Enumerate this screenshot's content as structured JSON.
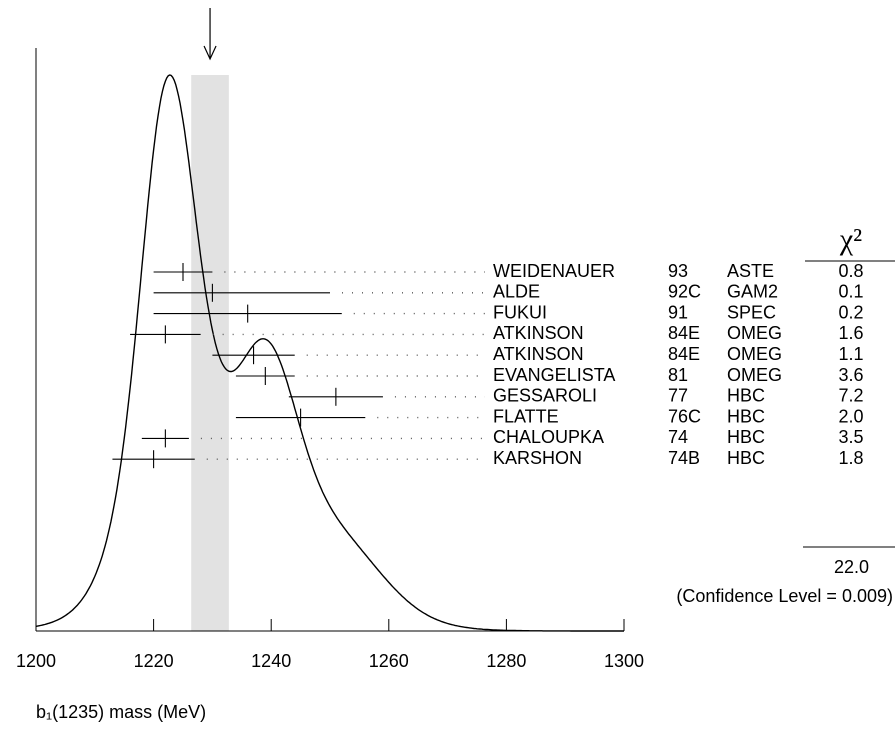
{
  "chart_data": {
    "type": "ideogram",
    "x_label": "b₁(1235) mass (MeV)",
    "xlim": [
      1200,
      1300
    ],
    "xticks": [
      1200,
      1220,
      1240,
      1260,
      1280,
      1300
    ],
    "average": {
      "value": 1229.6,
      "error": 3.2
    },
    "authors": [
      "WEIDENAUER",
      "ALDE",
      "FUKUI",
      "ATKINSON",
      "ATKINSON",
      "EVANGELISTA",
      "GESSAROLI",
      "FLATTE",
      "CHALOUPKA",
      "KARSHON"
    ],
    "years": [
      "93",
      "92C",
      "91",
      "84E",
      "84E",
      "81",
      "77",
      "76C",
      "74",
      "74B"
    ],
    "techniques": [
      "ASTE",
      "GAM2",
      "SPEC",
      "OMEG",
      "OMEG",
      "OMEG",
      "HBC",
      "HBC",
      "HBC",
      "HBC"
    ],
    "values": [
      1225,
      1230,
      1236,
      1222,
      1237,
      1239,
      1251,
      1245,
      1222,
      1220
    ],
    "lower": [
      1220,
      1220,
      1220,
      1216,
      1230,
      1234,
      1243,
      1234,
      1218,
      1213
    ],
    "upper": [
      1230,
      1250,
      1252,
      1228,
      1244,
      1244,
      1259,
      1256,
      1226,
      1227
    ],
    "chi2_header": "χ²",
    "chi2": [
      "0.8",
      "0.1",
      "0.2",
      "1.6",
      "1.1",
      "3.6",
      "7.2",
      "2.0",
      "3.5",
      "1.8"
    ],
    "chi2_total": "22.0",
    "confidence": "(Confidence Level = 0.009)"
  }
}
